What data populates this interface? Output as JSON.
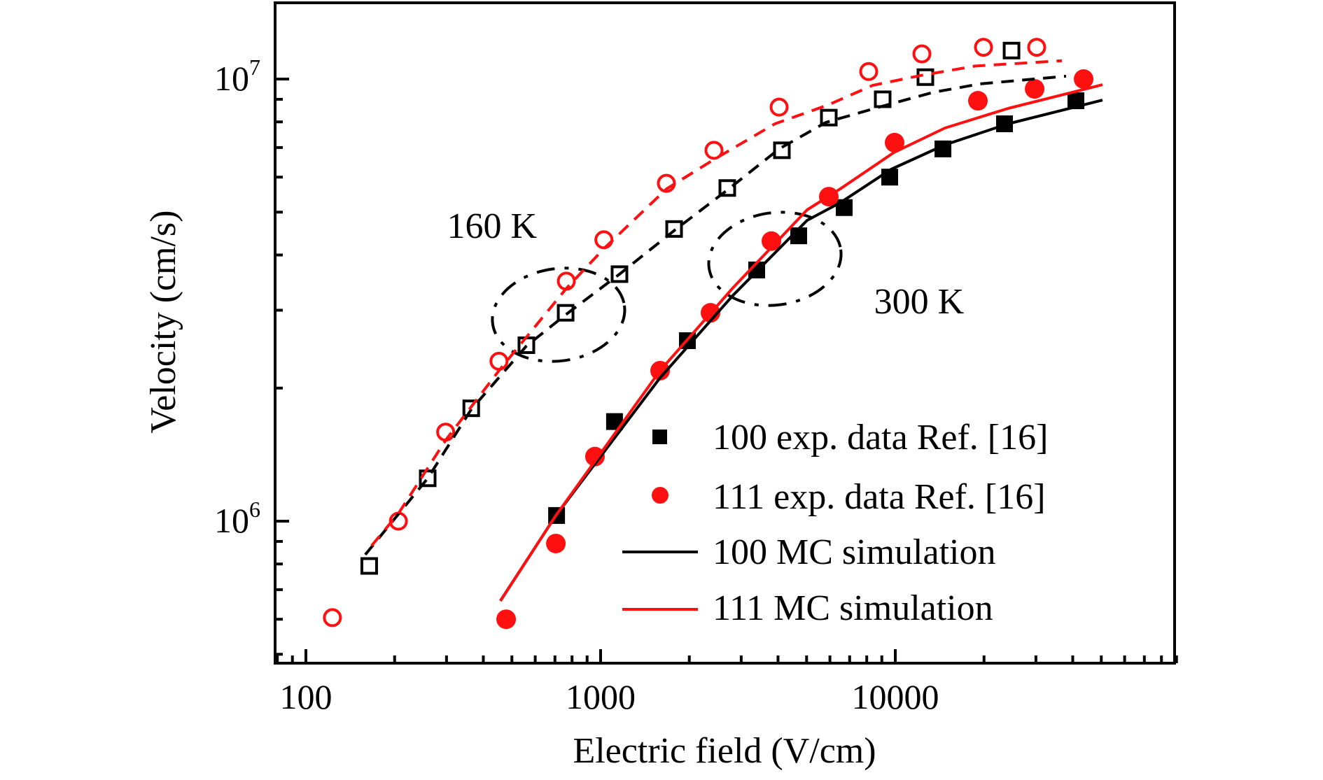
{
  "chart_data": {
    "type": "scatter",
    "title": "",
    "xlabel": "Electric field (V/cm)",
    "ylabel": "Velocity (cm/s)",
    "xscale": "log",
    "yscale": "log",
    "xlim": [
      80,
      90000
    ],
    "ylim": [
      480000,
      14900000
    ],
    "grid": false,
    "x_ticks": [
      {
        "value": 100,
        "label": "100"
      },
      {
        "value": 1000,
        "label": "1000"
      },
      {
        "value": 10000,
        "label": "10000"
      }
    ],
    "y_ticks": [
      {
        "value": 1000000,
        "base": "10",
        "exp": "6"
      },
      {
        "value": 10000000,
        "base": "10",
        "exp": "7"
      }
    ],
    "colors": {
      "black": "#000000",
      "red": "#ff1010"
    },
    "series": [
      {
        "name": "100 exp. data Ref. [16]",
        "kind": "markers",
        "marker": "square-filled",
        "color": "#000000",
        "temperature": "300 K",
        "in_legend": true,
        "x": [
          709,
          1115,
          1970,
          3386,
          4701,
          6708,
          9572,
          14510,
          23470,
          41010
        ],
        "y": [
          1030000,
          1680000,
          2560000,
          3700000,
          4420000,
          5120000,
          6000000,
          6950000,
          7920000,
          8930000
        ]
      },
      {
        "name": "111 exp. data Ref. [16]",
        "kind": "markers",
        "marker": "circle-filled",
        "color": "#ff1010",
        "temperature": "300 K",
        "in_legend": true,
        "x": [
          478,
          705,
          957,
          1592,
          2360,
          3798,
          5948,
          9945,
          19070,
          29700,
          43550
        ],
        "y": [
          600000,
          890000,
          1400000,
          2190000,
          2960000,
          4300000,
          5420000,
          7180000,
          8930000,
          9500000,
          10000000
        ]
      },
      {
        "name": "100 MC simulation",
        "kind": "line",
        "style": "solid",
        "color": "#000000",
        "temperature": "300 K",
        "in_legend": true,
        "x": [
          457,
          705,
          1592,
          2812,
          5020,
          6494,
          9676,
          14740,
          24120,
          50470
        ],
        "y": [
          660000,
          1030000,
          2110000,
          3240000,
          4790000,
          5250000,
          6250000,
          7100000,
          7920000,
          8960000
        ]
      },
      {
        "name": "111 MC simulation",
        "kind": "line",
        "style": "solid",
        "color": "#ff1010",
        "temperature": "300 K",
        "in_legend": true,
        "x": [
          457,
          705,
          1592,
          2812,
          5020,
          6494,
          9890,
          14740,
          24120,
          50470
        ],
        "y": [
          660000,
          1030000,
          2190000,
          3370000,
          5060000,
          5640000,
          6820000,
          7750000,
          8580000,
          9710000
        ]
      },
      {
        "name": "100 exp. data (160 K)",
        "kind": "markers",
        "marker": "square-open",
        "color": "#000000",
        "temperature": "160 K",
        "in_legend": false,
        "x": [
          164,
          259,
          364,
          560,
          761,
          1159,
          1776,
          2691,
          4123,
          5948,
          9062,
          12650,
          24800
        ],
        "y": [
          792000,
          1250000,
          1800000,
          2500000,
          2960000,
          3620000,
          4580000,
          5670000,
          6900000,
          8180000,
          9000000,
          10100000,
          11600000
        ]
      },
      {
        "name": "111 exp. data (160 K)",
        "kind": "markers",
        "marker": "circle-open",
        "color": "#ff1010",
        "temperature": "160 K",
        "in_legend": false,
        "x": [
          123,
          206,
          298,
          452,
          765,
          1026,
          1672,
          2425,
          4034,
          8122,
          12310,
          19920,
          30180
        ],
        "y": [
          605000,
          1000000,
          1590000,
          2300000,
          3490000,
          4330000,
          5810000,
          6900000,
          8640000,
          10400000,
          11400000,
          11800000,
          11800000
        ]
      },
      {
        "name": "100 MC simulation (160 K)",
        "kind": "line",
        "style": "dashed",
        "color": "#000000",
        "temperature": "160 K",
        "in_legend": false,
        "x": [
          159,
          259,
          364,
          560,
          761,
          1159,
          1776,
          2691,
          4034,
          5818,
          9365,
          13440,
          19390,
          37970
        ],
        "y": [
          840000,
          1250000,
          1790000,
          2490000,
          2930000,
          3620000,
          4540000,
          5610000,
          6950000,
          7980000,
          8740000,
          9330000,
          9750000,
          10150000
        ]
      },
      {
        "name": "111 MC simulation (160 K)",
        "kind": "line",
        "style": "dashed",
        "color": "#ff1010",
        "temperature": "160 K",
        "in_legend": false,
        "x": [
          167,
          206,
          299,
          452,
          765,
          1028,
          1672,
          2425,
          3904,
          5916,
          8395,
          12310,
          18660,
          36760
        ],
        "y": [
          880000,
          1040000,
          1530000,
          2190000,
          3360000,
          4140000,
          5640000,
          6580000,
          7920000,
          8740000,
          9680000,
          10200000,
          10700000,
          11000000
        ]
      }
    ],
    "annotations": [
      {
        "text": "160 K",
        "x": 428,
        "y": 4670000,
        "ellipse_center": {
          "x": 720,
          "y": 2930000
        }
      },
      {
        "text": "300 K",
        "x": 12040,
        "y": 3150000,
        "ellipse_center": {
          "x": 3904,
          "y": 3920000
        }
      }
    ],
    "legend": {
      "placement": "lower-right",
      "entries": [
        {
          "label": "100 exp. data Ref. [16]",
          "symbol": "square-filled",
          "color": "#000000"
        },
        {
          "label": "111 exp. data Ref. [16]",
          "symbol": "circle-filled",
          "color": "#ff1010"
        },
        {
          "label": "100 MC simulation",
          "symbol": "line",
          "color": "#000000"
        },
        {
          "label": "111 MC simulation",
          "symbol": "line",
          "color": "#ff1010"
        }
      ]
    }
  }
}
